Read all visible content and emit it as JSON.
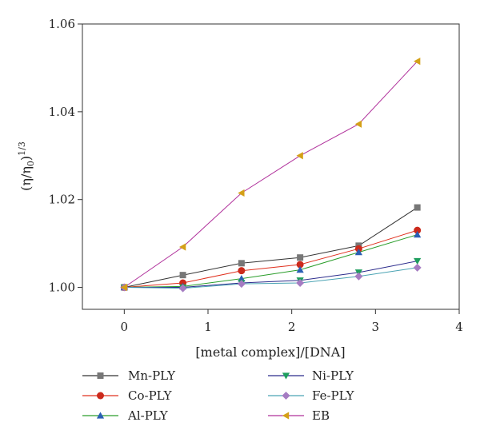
{
  "chart_data": {
    "type": "line",
    "xlabel": "[metal complex]/[DNA]",
    "ylabel_main": "(η/η",
    "ylabel_sub": "0",
    "ylabel_close": ")",
    "ylabel_sup": "1/3",
    "xlim": [
      -0.5,
      4
    ],
    "ylim": [
      0.995,
      1.06
    ],
    "xticks": [
      0,
      1,
      2,
      3,
      4
    ],
    "xtick_labels": [
      "0",
      "1",
      "2",
      "3",
      "4"
    ],
    "yticks": [
      1.0,
      1.02,
      1.04,
      1.06
    ],
    "ytick_labels": [
      "1.00",
      "1.02",
      "1.04",
      "1.06"
    ],
    "grid": false,
    "legend_position": "bottom",
    "series": [
      {
        "name": "Mn-PLY",
        "color": "#333333",
        "marker": "square",
        "x": [
          0,
          0.7,
          1.4,
          2.1,
          2.8,
          3.5
        ],
        "y": [
          1.0,
          1.0028,
          1.0055,
          1.0068,
          1.0095,
          1.0182
        ]
      },
      {
        "name": "Co-PLY",
        "color": "#e0301e",
        "marker": "circle",
        "x": [
          0,
          0.7,
          1.4,
          2.1,
          2.8,
          3.5
        ],
        "y": [
          1.0,
          1.001,
          1.0038,
          1.0052,
          1.0088,
          1.013
        ]
      },
      {
        "name": "Al-PLY",
        "color": "#2a9d2a",
        "marker": "triangle-up",
        "x": [
          0,
          0.7,
          1.4,
          2.1,
          2.8,
          3.5
        ],
        "y": [
          1.0,
          1.0002,
          1.002,
          1.004,
          1.008,
          1.012
        ]
      },
      {
        "name": "Ni-PLY",
        "color": "#2b2b8c",
        "marker": "triangle-down",
        "x": [
          0,
          0.7,
          1.4,
          2.1,
          2.8,
          3.5
        ],
        "y": [
          1.0,
          1.0,
          1.001,
          1.0016,
          1.0034,
          1.006
        ]
      },
      {
        "name": "Fe-PLY",
        "color": "#4aa3b3",
        "marker": "diamond",
        "x": [
          0,
          0.7,
          1.4,
          2.1,
          2.8,
          3.5
        ],
        "y": [
          1.0,
          0.9998,
          1.0008,
          1.001,
          1.0025,
          1.0045
        ]
      },
      {
        "name": "EB",
        "color": "#b0309b",
        "marker": "triangle-left",
        "x": [
          0,
          0.7,
          1.4,
          2.1,
          2.8,
          3.5
        ],
        "y": [
          1.0,
          1.0092,
          1.0215,
          1.03,
          1.0372,
          1.0515
        ]
      }
    ],
    "marker_colors": {
      "Mn-PLY": "#777777",
      "Co-PLY": "#cc2a1c",
      "Al-PLY": "#2a5fb5",
      "Ni-PLY": "#1e9e5e",
      "Fe-PLY": "#a57cc2",
      "EB": "#d4a017"
    }
  }
}
